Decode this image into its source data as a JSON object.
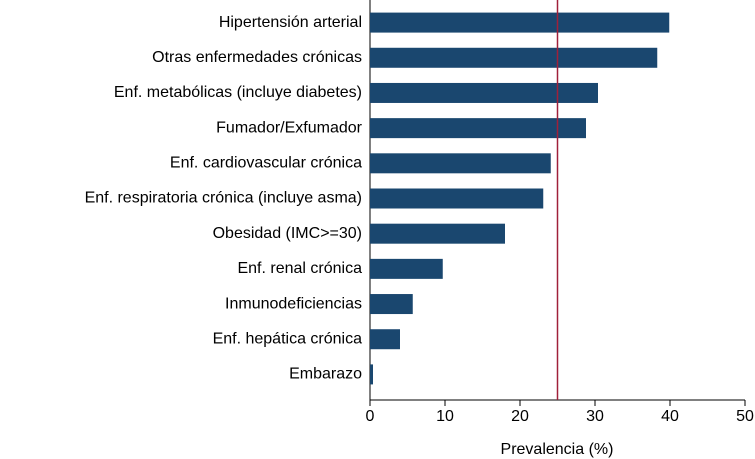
{
  "chart_data": {
    "type": "hbar",
    "x_label": "Prevalencia (%)",
    "categories": [
      "Hipertensión arterial",
      "Otras enfermedades crónicas",
      "Enf. metabólicas (incluye diabetes)",
      "Fumador/Exfumador",
      "Enf. cardiovascular crónica",
      "Enf. respiratoria crónica (incluye asma)",
      "Obesidad (IMC>=30)",
      "Enf. renal crónica",
      "Inmunodeficiencias",
      "Enf. hepática crónica",
      "Embarazo"
    ],
    "values": [
      39.9,
      38.3,
      30.4,
      28.8,
      24.1,
      23.1,
      18,
      9.7,
      5.7,
      4,
      0.4
    ],
    "color": "#1a476f",
    "reference_line": 25,
    "reference_color": "#a0203a",
    "xlim": [
      0,
      50
    ],
    "xticks": [
      0,
      10,
      20,
      30,
      40,
      50
    ]
  }
}
